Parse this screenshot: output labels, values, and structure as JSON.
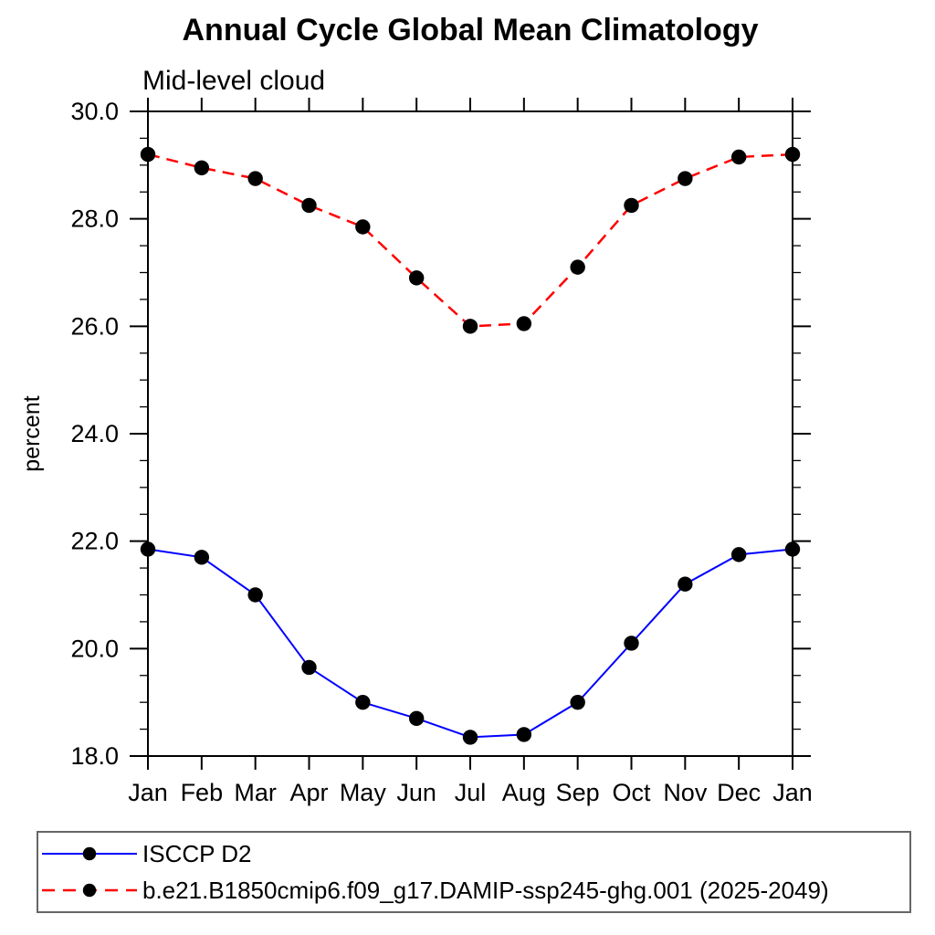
{
  "page": {
    "background": "#ffffff"
  },
  "header": {
    "title": "Annual Cycle Global Mean Climatology",
    "subtitle": "Mid-level cloud"
  },
  "chart_data": {
    "type": "line",
    "title": "Annual Cycle Global Mean Climatology",
    "subtitle": "Mid-level cloud",
    "xlabel": "",
    "ylabel": "percent",
    "categories": [
      "Jan",
      "Feb",
      "Mar",
      "Apr",
      "May",
      "Jun",
      "Jul",
      "Aug",
      "Sep",
      "Oct",
      "Nov",
      "Dec",
      "Jan"
    ],
    "ylim": [
      18.0,
      30.0
    ],
    "ytick_major": [
      18.0,
      20.0,
      22.0,
      24.0,
      26.0,
      28.0,
      30.0
    ],
    "ytick_labels": [
      "18.0",
      "20.0",
      "22.0",
      "24.0",
      "26.0",
      "28.0",
      "30.0"
    ],
    "ytick_minor_step": 0.5,
    "grid": false,
    "frame_color": "#000000",
    "legend_position": "bottom",
    "series": [
      {
        "name": "ISCCP D2",
        "color": "#0000ff",
        "line_style": "solid",
        "line_width": 2,
        "marker": "circle",
        "marker_color": "#000000",
        "values": [
          21.85,
          21.7,
          21.0,
          19.65,
          19.0,
          18.7,
          18.35,
          18.4,
          19.0,
          20.1,
          21.2,
          21.75,
          21.85
        ]
      },
      {
        "name": "b.e21.B1850cmip6.f09_g17.DAMIP-ssp245-ghg.001 (2025-2049)",
        "color": "#ff0000",
        "line_style": "dashed",
        "line_width": 2.5,
        "marker": "circle",
        "marker_color": "#000000",
        "values": [
          29.2,
          28.95,
          28.75,
          28.25,
          27.85,
          26.9,
          26.0,
          26.05,
          27.1,
          28.25,
          28.75,
          29.15,
          29.2
        ]
      }
    ]
  }
}
